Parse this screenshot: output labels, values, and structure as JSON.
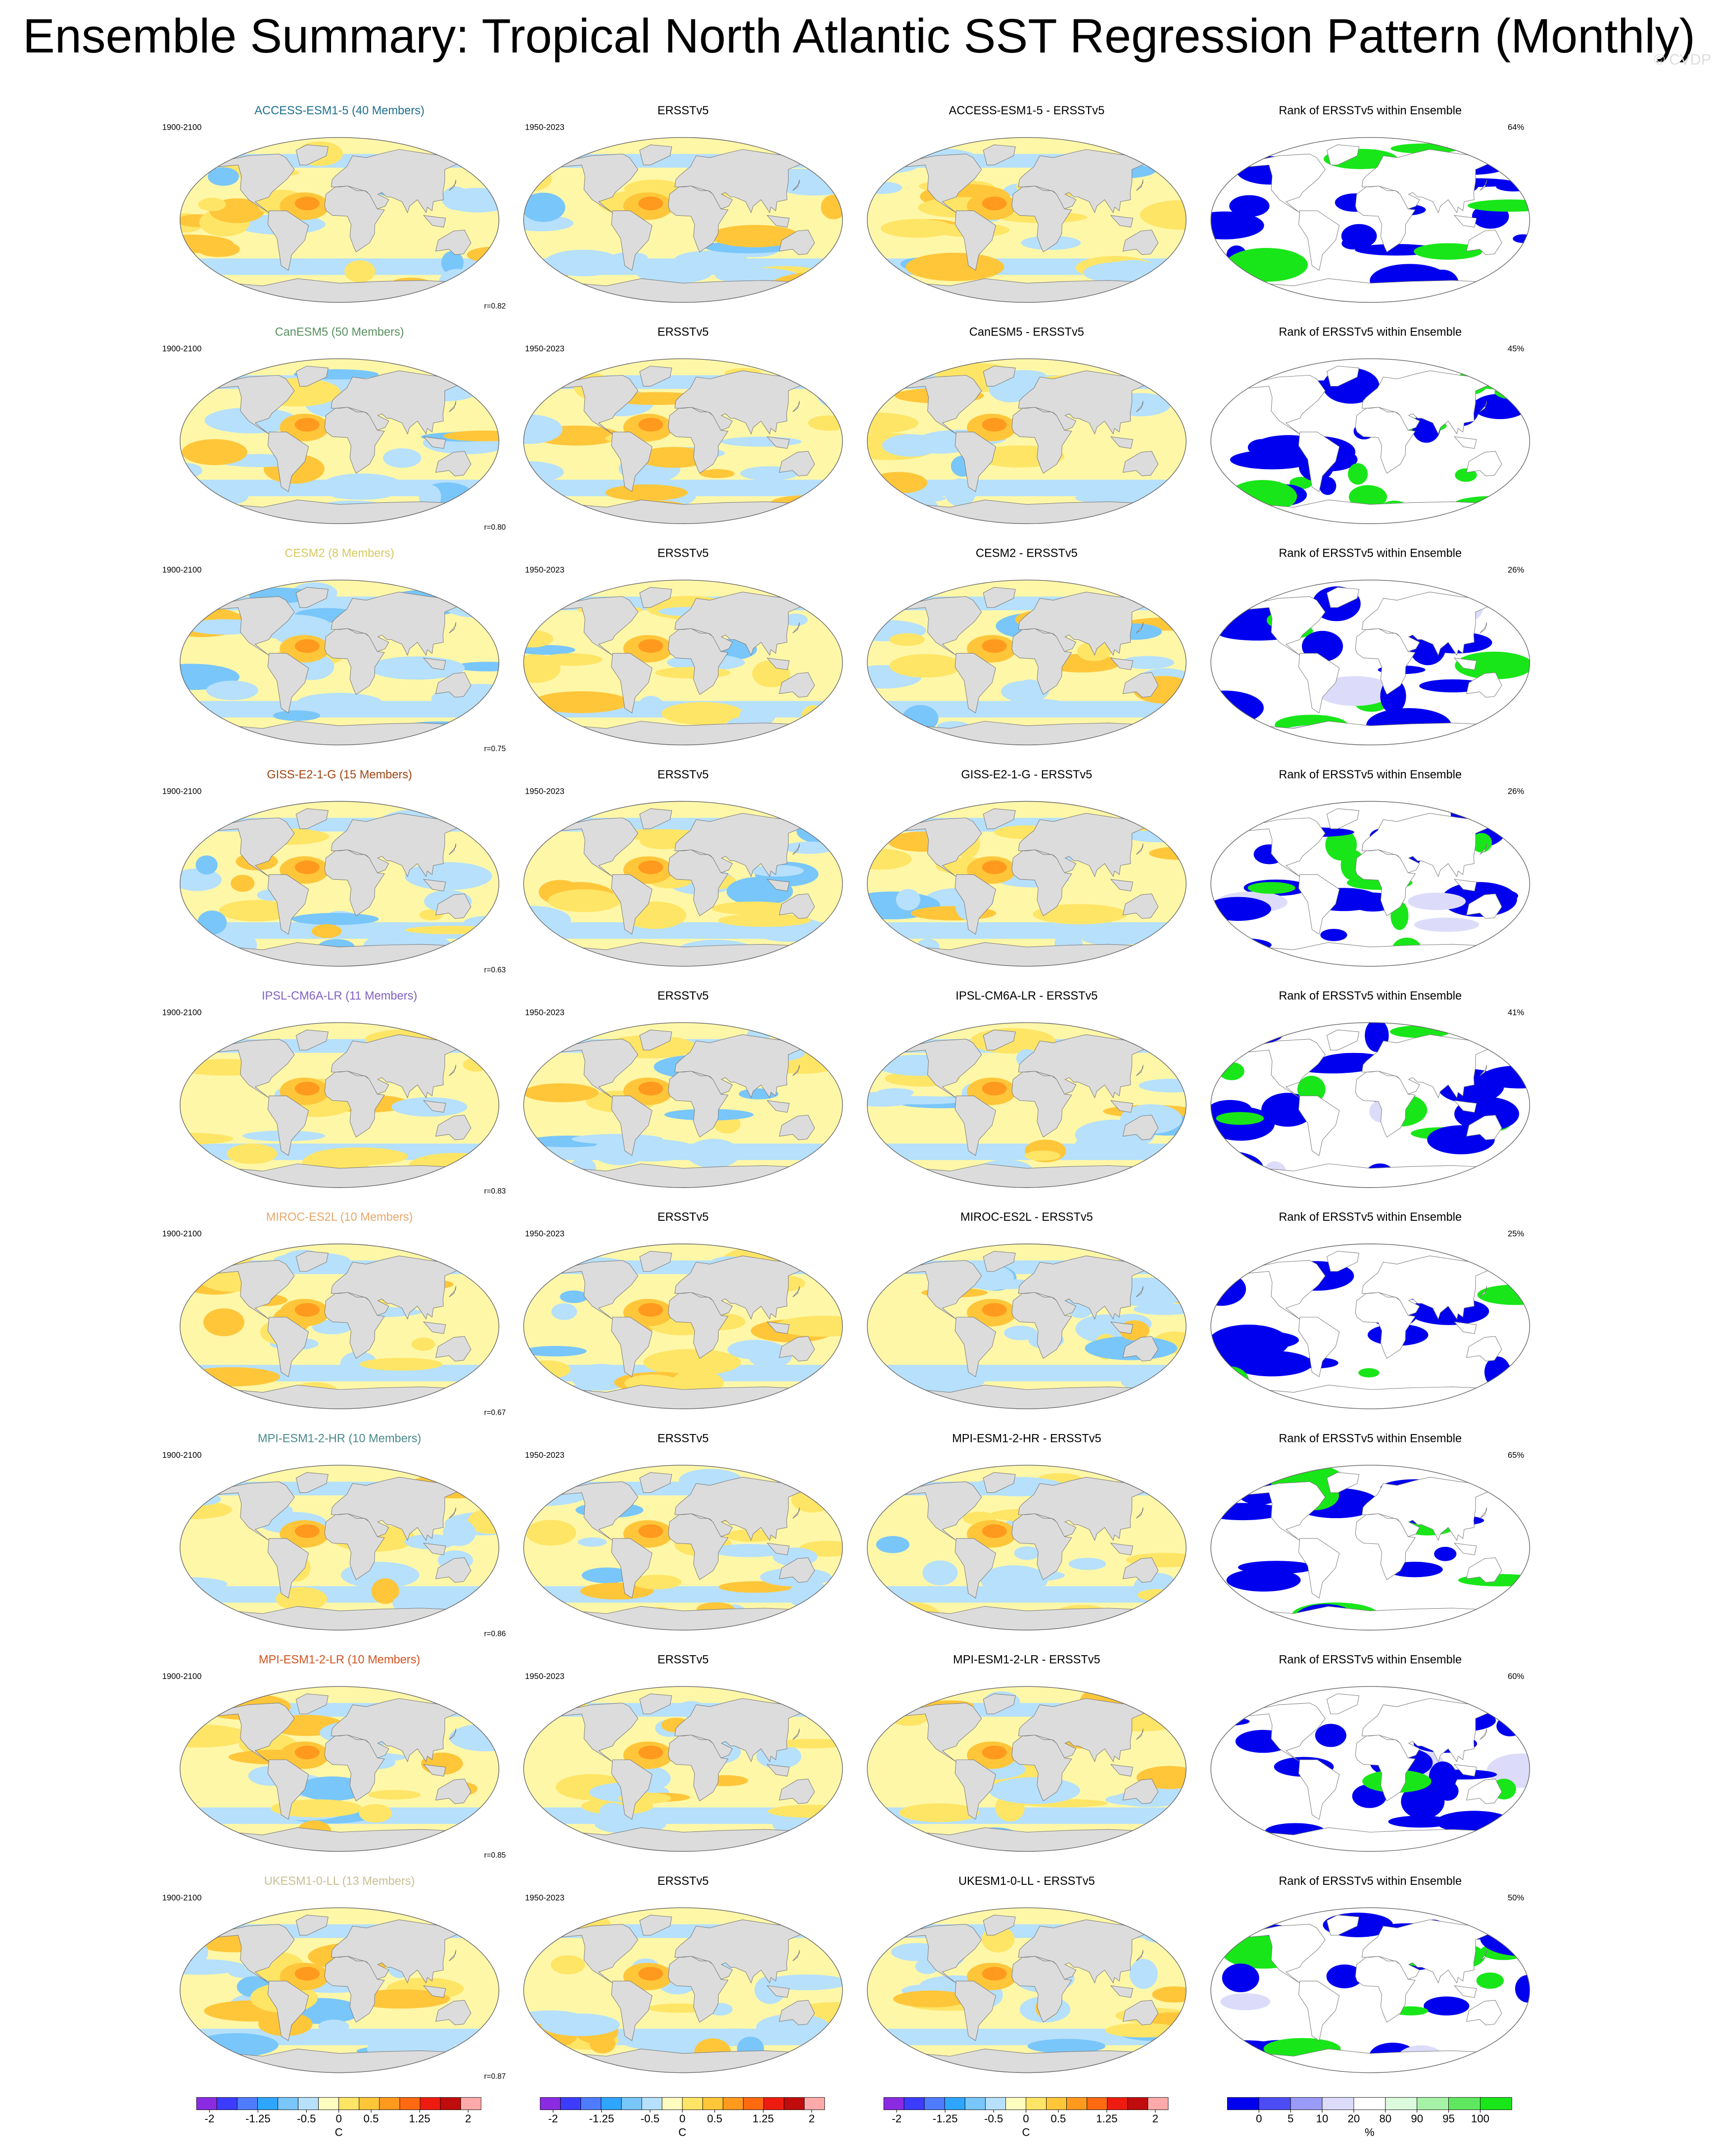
{
  "title": "Ensemble Summary: Tropical North Atlantic SST Regression Pattern (Monthly)",
  "watermark": "© CVDP",
  "rows": [
    {
      "model": "ACCESS-ESM1-5 (40 Members)",
      "color": "#1f6f8f",
      "period": "1900-2100",
      "obs": "ERSSTv5",
      "obs_period": "1950-2023",
      "diff": "ACCESS-ESM1-5 - ERSSTv5",
      "rank_title": "Rank of ERSSTv5 within Ensemble",
      "rank_pct": "64%",
      "r": "r=0.82"
    },
    {
      "model": "CanESM5 (50 Members)",
      "color": "#5a9060",
      "period": "1900-2100",
      "obs": "ERSSTv5",
      "obs_period": "1950-2023",
      "diff": "CanESM5 - ERSSTv5",
      "rank_title": "Rank of ERSSTv5 within Ensemble",
      "rank_pct": "45%",
      "r": "r=0.80"
    },
    {
      "model": "CESM2 (8 Members)",
      "color": "#d6c860",
      "period": "1900-2100",
      "obs": "ERSSTv5",
      "obs_period": "1950-2023",
      "diff": "CESM2 - ERSSTv5",
      "rank_title": "Rank of ERSSTv5 within Ensemble",
      "rank_pct": "26%",
      "r": "r=0.75"
    },
    {
      "model": "GISS-E2-1-G (15 Members)",
      "color": "#a04412",
      "period": "1900-2100",
      "obs": "ERSSTv5",
      "obs_period": "1950-2023",
      "diff": "GISS-E2-1-G - ERSSTv5",
      "rank_title": "Rank of ERSSTv5 within Ensemble",
      "rank_pct": "26%",
      "r": "r=0.63"
    },
    {
      "model": "IPSL-CM6A-LR (11 Members)",
      "color": "#8060c0",
      "period": "1900-2100",
      "obs": "ERSSTv5",
      "obs_period": "1950-2023",
      "diff": "IPSL-CM6A-LR - ERSSTv5",
      "rank_title": "Rank of ERSSTv5 within Ensemble",
      "rank_pct": "41%",
      "r": "r=0.83"
    },
    {
      "model": "MIROC-ES2L (10 Members)",
      "color": "#e6a86a",
      "period": "1900-2100",
      "obs": "ERSSTv5",
      "obs_period": "1950-2023",
      "diff": "MIROC-ES2L - ERSSTv5",
      "rank_title": "Rank of ERSSTv5 within Ensemble",
      "rank_pct": "25%",
      "r": "r=0.67"
    },
    {
      "model": "MPI-ESM1-2-HR (10 Members)",
      "color": "#4a8a8a",
      "period": "1900-2100",
      "obs": "ERSSTv5",
      "obs_period": "1950-2023",
      "diff": "MPI-ESM1-2-HR - ERSSTv5",
      "rank_title": "Rank of ERSSTv5 within Ensemble",
      "rank_pct": "65%",
      "r": "r=0.86"
    },
    {
      "model": "MPI-ESM1-2-LR (10 Members)",
      "color": "#d05422",
      "period": "1900-2100",
      "obs": "ERSSTv5",
      "obs_period": "1950-2023",
      "diff": "MPI-ESM1-2-LR - ERSSTv5",
      "rank_title": "Rank of ERSSTv5 within Ensemble",
      "rank_pct": "60%",
      "r": "r=0.85"
    },
    {
      "model": "UKESM1-0-LL (13 Members)",
      "color": "#c8c092",
      "period": "1900-2100",
      "obs": "ERSSTv5",
      "obs_period": "1950-2023",
      "diff": "UKESM1-0-LL - ERSSTv5",
      "rank_title": "Rank of ERSSTv5 within Ensemble",
      "rank_pct": "50%",
      "r": "r=0.87"
    }
  ],
  "colorbar": {
    "colors": [
      "#8a2be2",
      "#3c3cff",
      "#4f7cff",
      "#2ea6ff",
      "#79c6fa",
      "#b6e0fb",
      "#fffcc0",
      "#ffe566",
      "#ffc63a",
      "#ff9a1e",
      "#ff6a10",
      "#ee1c10",
      "#c00c0c",
      "#ffaaaa"
    ],
    "lim": [
      -2.2,
      2.2
    ],
    "ticks": [
      -2,
      -1.25,
      -0.5,
      0,
      0.5,
      1.25,
      2
    ],
    "unit": "C"
  },
  "rank_colorbar": {
    "colors": [
      "#0000ee",
      "#4c4cf4",
      "#9a9af8",
      "#dcdcfa",
      "#ffffff",
      "#dcfadc",
      "#a6f2a6",
      "#5fe85f",
      "#19e619"
    ],
    "labels": [
      0,
      5,
      10,
      20,
      80,
      90,
      95,
      100
    ],
    "unit": "%"
  }
}
